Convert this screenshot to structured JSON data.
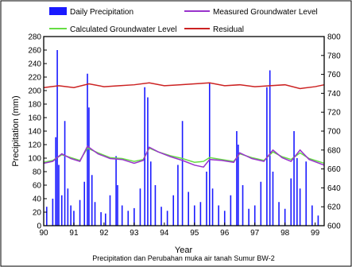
{
  "chart_data": {
    "type": "bar",
    "xlabel": "Year",
    "ylabel": "Precipitation (mm)",
    "caption": "Precipitation dan Perubahan muka air tanah Sumur BW-2",
    "xlim": [
      90,
      99.3
    ],
    "ylim": [
      0,
      280
    ],
    "y2lim": [
      600,
      800
    ],
    "x_ticks": [
      "90",
      "91",
      "92",
      "93",
      "94",
      "95",
      "96",
      "97",
      "98",
      "99"
    ],
    "y_ticks": [
      "0",
      "20",
      "40",
      "60",
      "80",
      "100",
      "120",
      "140",
      "160",
      "180",
      "200",
      "220",
      "240",
      "260",
      "280"
    ],
    "y2_ticks": [
      "600",
      "620",
      "640",
      "660",
      "680",
      "700",
      "720",
      "740",
      "760",
      "780",
      "800"
    ],
    "legend": [
      {
        "name": "Daily Precipitation",
        "color": "#1a1aff",
        "kind": "bar"
      },
      {
        "name": "Measured Groundwater Level",
        "color": "#9933cc",
        "kind": "line"
      },
      {
        "name": "Calculated Groundwater Level",
        "color": "#66dd44",
        "kind": "line"
      },
      {
        "name": "Residual",
        "color": "#cc2222",
        "kind": "line"
      }
    ],
    "precipitation": {
      "color": "#1a1aff",
      "x": [
        90.1,
        90.3,
        90.4,
        90.45,
        90.5,
        90.6,
        90.7,
        90.8,
        90.9,
        91.0,
        91.2,
        91.35,
        91.45,
        91.5,
        91.6,
        91.7,
        91.9,
        92.05,
        92.2,
        92.4,
        92.45,
        92.6,
        92.8,
        93.0,
        93.2,
        93.35,
        93.45,
        93.55,
        93.7,
        93.9,
        94.1,
        94.3,
        94.45,
        94.6,
        94.8,
        95.0,
        95.2,
        95.4,
        95.5,
        95.6,
        95.8,
        96.0,
        96.2,
        96.4,
        96.45,
        96.6,
        96.8,
        97.0,
        97.2,
        97.4,
        97.5,
        97.6,
        97.8,
        98.0,
        98.2,
        98.3,
        98.4,
        98.5,
        98.7,
        98.9,
        99.1
      ],
      "values": [
        28,
        40,
        131,
        260,
        90,
        45,
        155,
        55,
        30,
        22,
        38,
        65,
        225,
        175,
        75,
        35,
        20,
        18,
        45,
        103,
        60,
        30,
        22,
        26,
        55,
        205,
        190,
        95,
        60,
        28,
        22,
        45,
        90,
        155,
        50,
        30,
        35,
        80,
        212,
        55,
        30,
        22,
        45,
        140,
        120,
        60,
        25,
        30,
        65,
        205,
        230,
        80,
        35,
        25,
        70,
        140,
        100,
        55,
        95,
        30,
        15
      ]
    },
    "measured_groundwater": {
      "color": "#9933cc",
      "x": [
        90.0,
        90.3,
        90.6,
        90.9,
        91.2,
        91.45,
        91.8,
        92.2,
        92.6,
        93.0,
        93.3,
        93.5,
        93.8,
        94.2,
        94.6,
        95.0,
        95.3,
        95.5,
        95.9,
        96.3,
        96.5,
        96.9,
        97.3,
        97.6,
        97.9,
        98.2,
        98.5,
        98.8,
        99.3
      ],
      "values": [
        666,
        668,
        676,
        671,
        668,
        684,
        676,
        671,
        670,
        666,
        669,
        683,
        678,
        673,
        669,
        664,
        662,
        670,
        669,
        667,
        677,
        671,
        668,
        680,
        672,
        668,
        680,
        670,
        664
      ]
    },
    "calculated_groundwater": {
      "color": "#66dd44",
      "x": [
        90.0,
        90.3,
        90.6,
        90.9,
        91.2,
        91.45,
        91.8,
        92.2,
        92.6,
        93.0,
        93.3,
        93.5,
        93.8,
        94.2,
        94.6,
        95.0,
        95.3,
        95.5,
        95.9,
        96.3,
        96.5,
        96.9,
        97.3,
        97.6,
        97.9,
        98.2,
        98.5,
        98.8,
        99.3
      ],
      "values": [
        667,
        669,
        675,
        672,
        669,
        682,
        677,
        672,
        671,
        668,
        670,
        682,
        678,
        674,
        671,
        667,
        668,
        672,
        670,
        668,
        676,
        672,
        669,
        678,
        673,
        670,
        677,
        671,
        666
      ]
    },
    "residual": {
      "color": "#cc2222",
      "x": [
        90.0,
        90.5,
        91.0,
        91.5,
        92.0,
        92.5,
        93.0,
        93.5,
        94.0,
        94.5,
        95.0,
        95.5,
        96.0,
        96.5,
        97.0,
        97.5,
        98.0,
        98.5,
        99.0,
        99.3
      ],
      "values": [
        746,
        748,
        746,
        750,
        747,
        748,
        749,
        751,
        748,
        749,
        750,
        751,
        748,
        749,
        747,
        748,
        749,
        745,
        747,
        749
      ]
    }
  }
}
